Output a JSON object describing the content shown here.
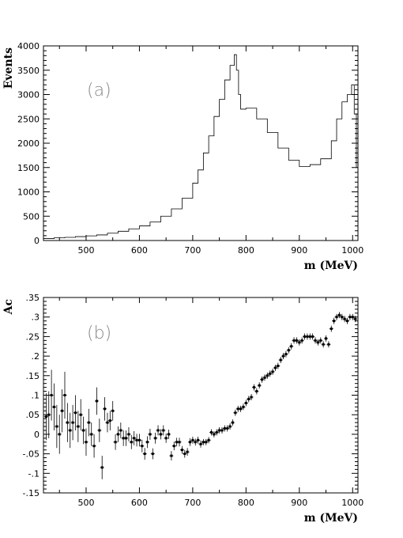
{
  "chart_data": [
    {
      "type": "line",
      "panel_label": "(a)",
      "xlabel": "m (MeV)",
      "ylabel": "Events",
      "xlim": [
        420,
        1010
      ],
      "ylim": [
        0,
        4000
      ],
      "xticks": [
        500,
        600,
        700,
        800,
        900,
        1000
      ],
      "yticks": [
        0,
        500,
        1000,
        1500,
        2000,
        2500,
        3000,
        3500,
        4000
      ],
      "series": [
        {
          "x": [
            420,
            440,
            460,
            480,
            500,
            520,
            540,
            560,
            580,
            600,
            620,
            640,
            660,
            680,
            700,
            710,
            720,
            730,
            740,
            750,
            760,
            770,
            778,
            782,
            786,
            790,
            800,
            820,
            840,
            860,
            880,
            900,
            920,
            940,
            960,
            970,
            980,
            990,
            998,
            1003,
            1007,
            1010
          ],
          "values": [
            40,
            55,
            65,
            80,
            95,
            115,
            150,
            190,
            240,
            300,
            380,
            500,
            650,
            870,
            1180,
            1450,
            1800,
            2150,
            2550,
            2900,
            3300,
            3600,
            3820,
            3500,
            3000,
            2700,
            2720,
            2500,
            2220,
            1900,
            1650,
            1520,
            1560,
            1680,
            2050,
            2500,
            2850,
            3000,
            3200,
            2600,
            1500,
            400
          ]
        }
      ]
    },
    {
      "type": "scatter",
      "panel_label": "(b)",
      "xlabel": "m (MeV)",
      "ylabel": "Ac",
      "xlim": [
        420,
        1010
      ],
      "ylim": [
        -0.15,
        0.35
      ],
      "xticks": [
        500,
        600,
        700,
        800,
        900,
        1000
      ],
      "yticks": [
        -0.15,
        -0.1,
        -0.05,
        0,
        0.05,
        0.1,
        0.15,
        0.2,
        0.25,
        0.3,
        0.35
      ],
      "series": [
        {
          "x": [
            425,
            430,
            435,
            440,
            445,
            450,
            455,
            460,
            465,
            470,
            475,
            480,
            485,
            490,
            495,
            500,
            505,
            510,
            515,
            520,
            525,
            530,
            535,
            540,
            545,
            550,
            555,
            560,
            565,
            570,
            575,
            580,
            585,
            590,
            595,
            600,
            605,
            610,
            615,
            620,
            625,
            630,
            635,
            640,
            645,
            650,
            655,
            660,
            665,
            670,
            675,
            680,
            685,
            690,
            695,
            700,
            705,
            710,
            715,
            720,
            725,
            730,
            735,
            740,
            745,
            750,
            755,
            760,
            765,
            770,
            775,
            780,
            785,
            790,
            795,
            800,
            805,
            810,
            815,
            820,
            825,
            830,
            835,
            840,
            845,
            850,
            855,
            860,
            865,
            870,
            875,
            880,
            885,
            890,
            895,
            900,
            905,
            910,
            915,
            920,
            925,
            930,
            935,
            940,
            945,
            950,
            955,
            960,
            965,
            970,
            975,
            980,
            985,
            990,
            995,
            1000,
            1005
          ],
          "values": [
            0.045,
            0.05,
            0.1,
            0.07,
            0.02,
            0.0,
            0.06,
            0.1,
            0.03,
            0.01,
            0.03,
            0.055,
            0.02,
            0.05,
            0.01,
            -0.02,
            0.03,
            0.0,
            -0.03,
            0.085,
            0.01,
            -0.085,
            0.065,
            0.03,
            0.035,
            0.06,
            -0.02,
            0.0,
            0.01,
            -0.01,
            -0.01,
            0.0,
            -0.02,
            -0.01,
            -0.015,
            -0.015,
            -0.03,
            -0.05,
            -0.02,
            0.0,
            -0.05,
            -0.01,
            0.01,
            0.0,
            0.01,
            -0.01,
            0.0,
            -0.055,
            -0.03,
            -0.02,
            -0.02,
            -0.04,
            -0.05,
            -0.045,
            -0.02,
            -0.015,
            -0.02,
            -0.015,
            -0.025,
            -0.02,
            -0.02,
            -0.015,
            0.005,
            0.0,
            0.005,
            0.01,
            0.01,
            0.015,
            0.015,
            0.02,
            0.03,
            0.055,
            0.065,
            0.065,
            0.07,
            0.08,
            0.09,
            0.095,
            0.12,
            0.11,
            0.125,
            0.14,
            0.145,
            0.15,
            0.155,
            0.16,
            0.17,
            0.175,
            0.19,
            0.2,
            0.205,
            0.215,
            0.225,
            0.24,
            0.24,
            0.235,
            0.24,
            0.25,
            0.25,
            0.25,
            0.25,
            0.24,
            0.235,
            0.24,
            0.23,
            0.245,
            0.23,
            0.27,
            0.29,
            0.3,
            0.305,
            0.3,
            0.295,
            0.29,
            0.3,
            0.3,
            0.295
          ],
          "errors": [
            0.06,
            0.06,
            0.065,
            0.06,
            0.055,
            0.05,
            0.055,
            0.06,
            0.05,
            0.045,
            0.045,
            0.045,
            0.04,
            0.04,
            0.035,
            0.035,
            0.035,
            0.03,
            0.03,
            0.035,
            0.03,
            0.03,
            0.03,
            0.025,
            0.025,
            0.025,
            0.02,
            0.02,
            0.02,
            0.02,
            0.02,
            0.018,
            0.018,
            0.018,
            0.016,
            0.016,
            0.016,
            0.015,
            0.015,
            0.014,
            0.014,
            0.014,
            0.013,
            0.013,
            0.013,
            0.012,
            0.012,
            0.012,
            0.011,
            0.011,
            0.011,
            0.01,
            0.01,
            0.01,
            0.01,
            0.009,
            0.009,
            0.009,
            0.009,
            0.008,
            0.008,
            0.008,
            0.008,
            0.008,
            0.008,
            0.008,
            0.008,
            0.008,
            0.008,
            0.008,
            0.008,
            0.008,
            0.008,
            0.008,
            0.008,
            0.008,
            0.008,
            0.008,
            0.008,
            0.008,
            0.008,
            0.008,
            0.008,
            0.008,
            0.008,
            0.008,
            0.008,
            0.008,
            0.008,
            0.008,
            0.008,
            0.008,
            0.008,
            0.008,
            0.008,
            0.008,
            0.008,
            0.008,
            0.008,
            0.008,
            0.008,
            0.008,
            0.008,
            0.008,
            0.008,
            0.008,
            0.008,
            0.008,
            0.008,
            0.008,
            0.008,
            0.008,
            0.008,
            0.008,
            0.008,
            0.008,
            0.008
          ]
        }
      ]
    }
  ]
}
